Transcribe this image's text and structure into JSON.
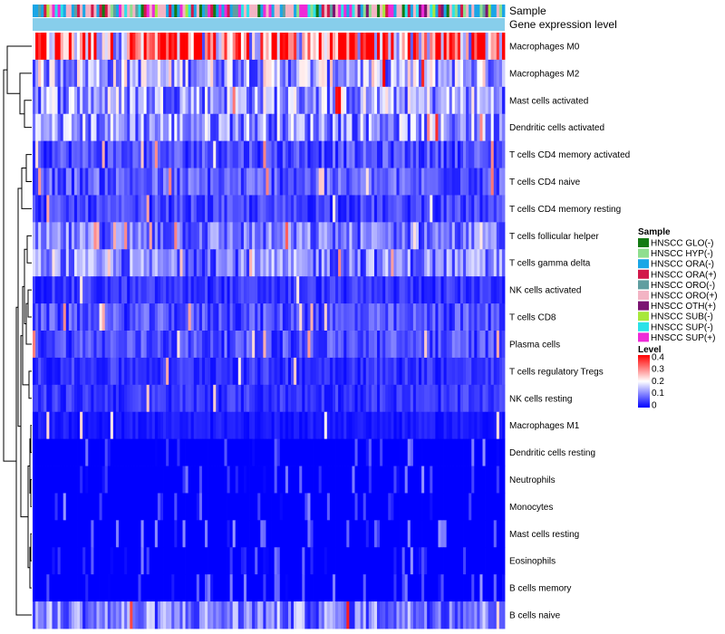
{
  "chart_data": {
    "type": "heatmap",
    "title": "",
    "annotation_rows": [
      "Sample",
      "Gene expression level"
    ],
    "rows": [
      "Macrophages M0",
      "Macrophages M2",
      "Mast cells activated",
      "Dendritic cells activated",
      "T cells CD4 memory activated",
      "T cells CD4 naive",
      "T cells CD4 memory resting",
      "T cells follicular helper",
      "T cells gamma delta",
      "NK cells activated",
      "T cells CD8",
      "Plasma cells",
      "T cells regulatory  Tregs",
      "NK cells resting",
      "Macrophages M1",
      "Dendritic cells resting",
      "Neutrophils",
      "Monocytes",
      "Mast cells resting",
      "Eosinophils",
      "B cells memory",
      "B cells naive"
    ],
    "row_mean_levels": [
      0.28,
      0.14,
      0.13,
      0.12,
      0.06,
      0.07,
      0.05,
      0.09,
      0.1,
      0.04,
      0.06,
      0.06,
      0.04,
      0.04,
      0.02,
      0.01,
      0.01,
      0.01,
      0.01,
      0.01,
      0.005,
      0.1
    ],
    "n_samples": 170,
    "sample_legend": {
      "title": "Sample",
      "items": [
        {
          "label": "HNSCC GLO(-)",
          "color": "#137a13"
        },
        {
          "label": "HNSCC HYP(-)",
          "color": "#8fde8f"
        },
        {
          "label": "HNSCC ORA(-)",
          "color": "#1aa6e6"
        },
        {
          "label": "HNSCC ORA(+)",
          "color": "#d1184a"
        },
        {
          "label": "HNSCC ORO(-)",
          "color": "#5f9ea0"
        },
        {
          "label": "HNSCC ORO(+)",
          "color": "#f3b4c4"
        },
        {
          "label": "HNSCC OTH(+)",
          "color": "#7a1472"
        },
        {
          "label": "HNSCC SUB(-)",
          "color": "#a8e83c"
        },
        {
          "label": "HNSCC SUP(-)",
          "color": "#2ce2e8"
        },
        {
          "label": "HNSCC SUP(+)",
          "color": "#ee2ad8"
        }
      ]
    },
    "color_legend": {
      "title": "Level",
      "ticks": [
        "0.4",
        "0.3",
        "0.2",
        "0.1",
        "0"
      ],
      "range": [
        0,
        0.4
      ],
      "low_color": "#0000ff",
      "mid_color": "#ffffff",
      "high_color": "#ff0000"
    },
    "expression_bar_color": "#87ceeb"
  }
}
